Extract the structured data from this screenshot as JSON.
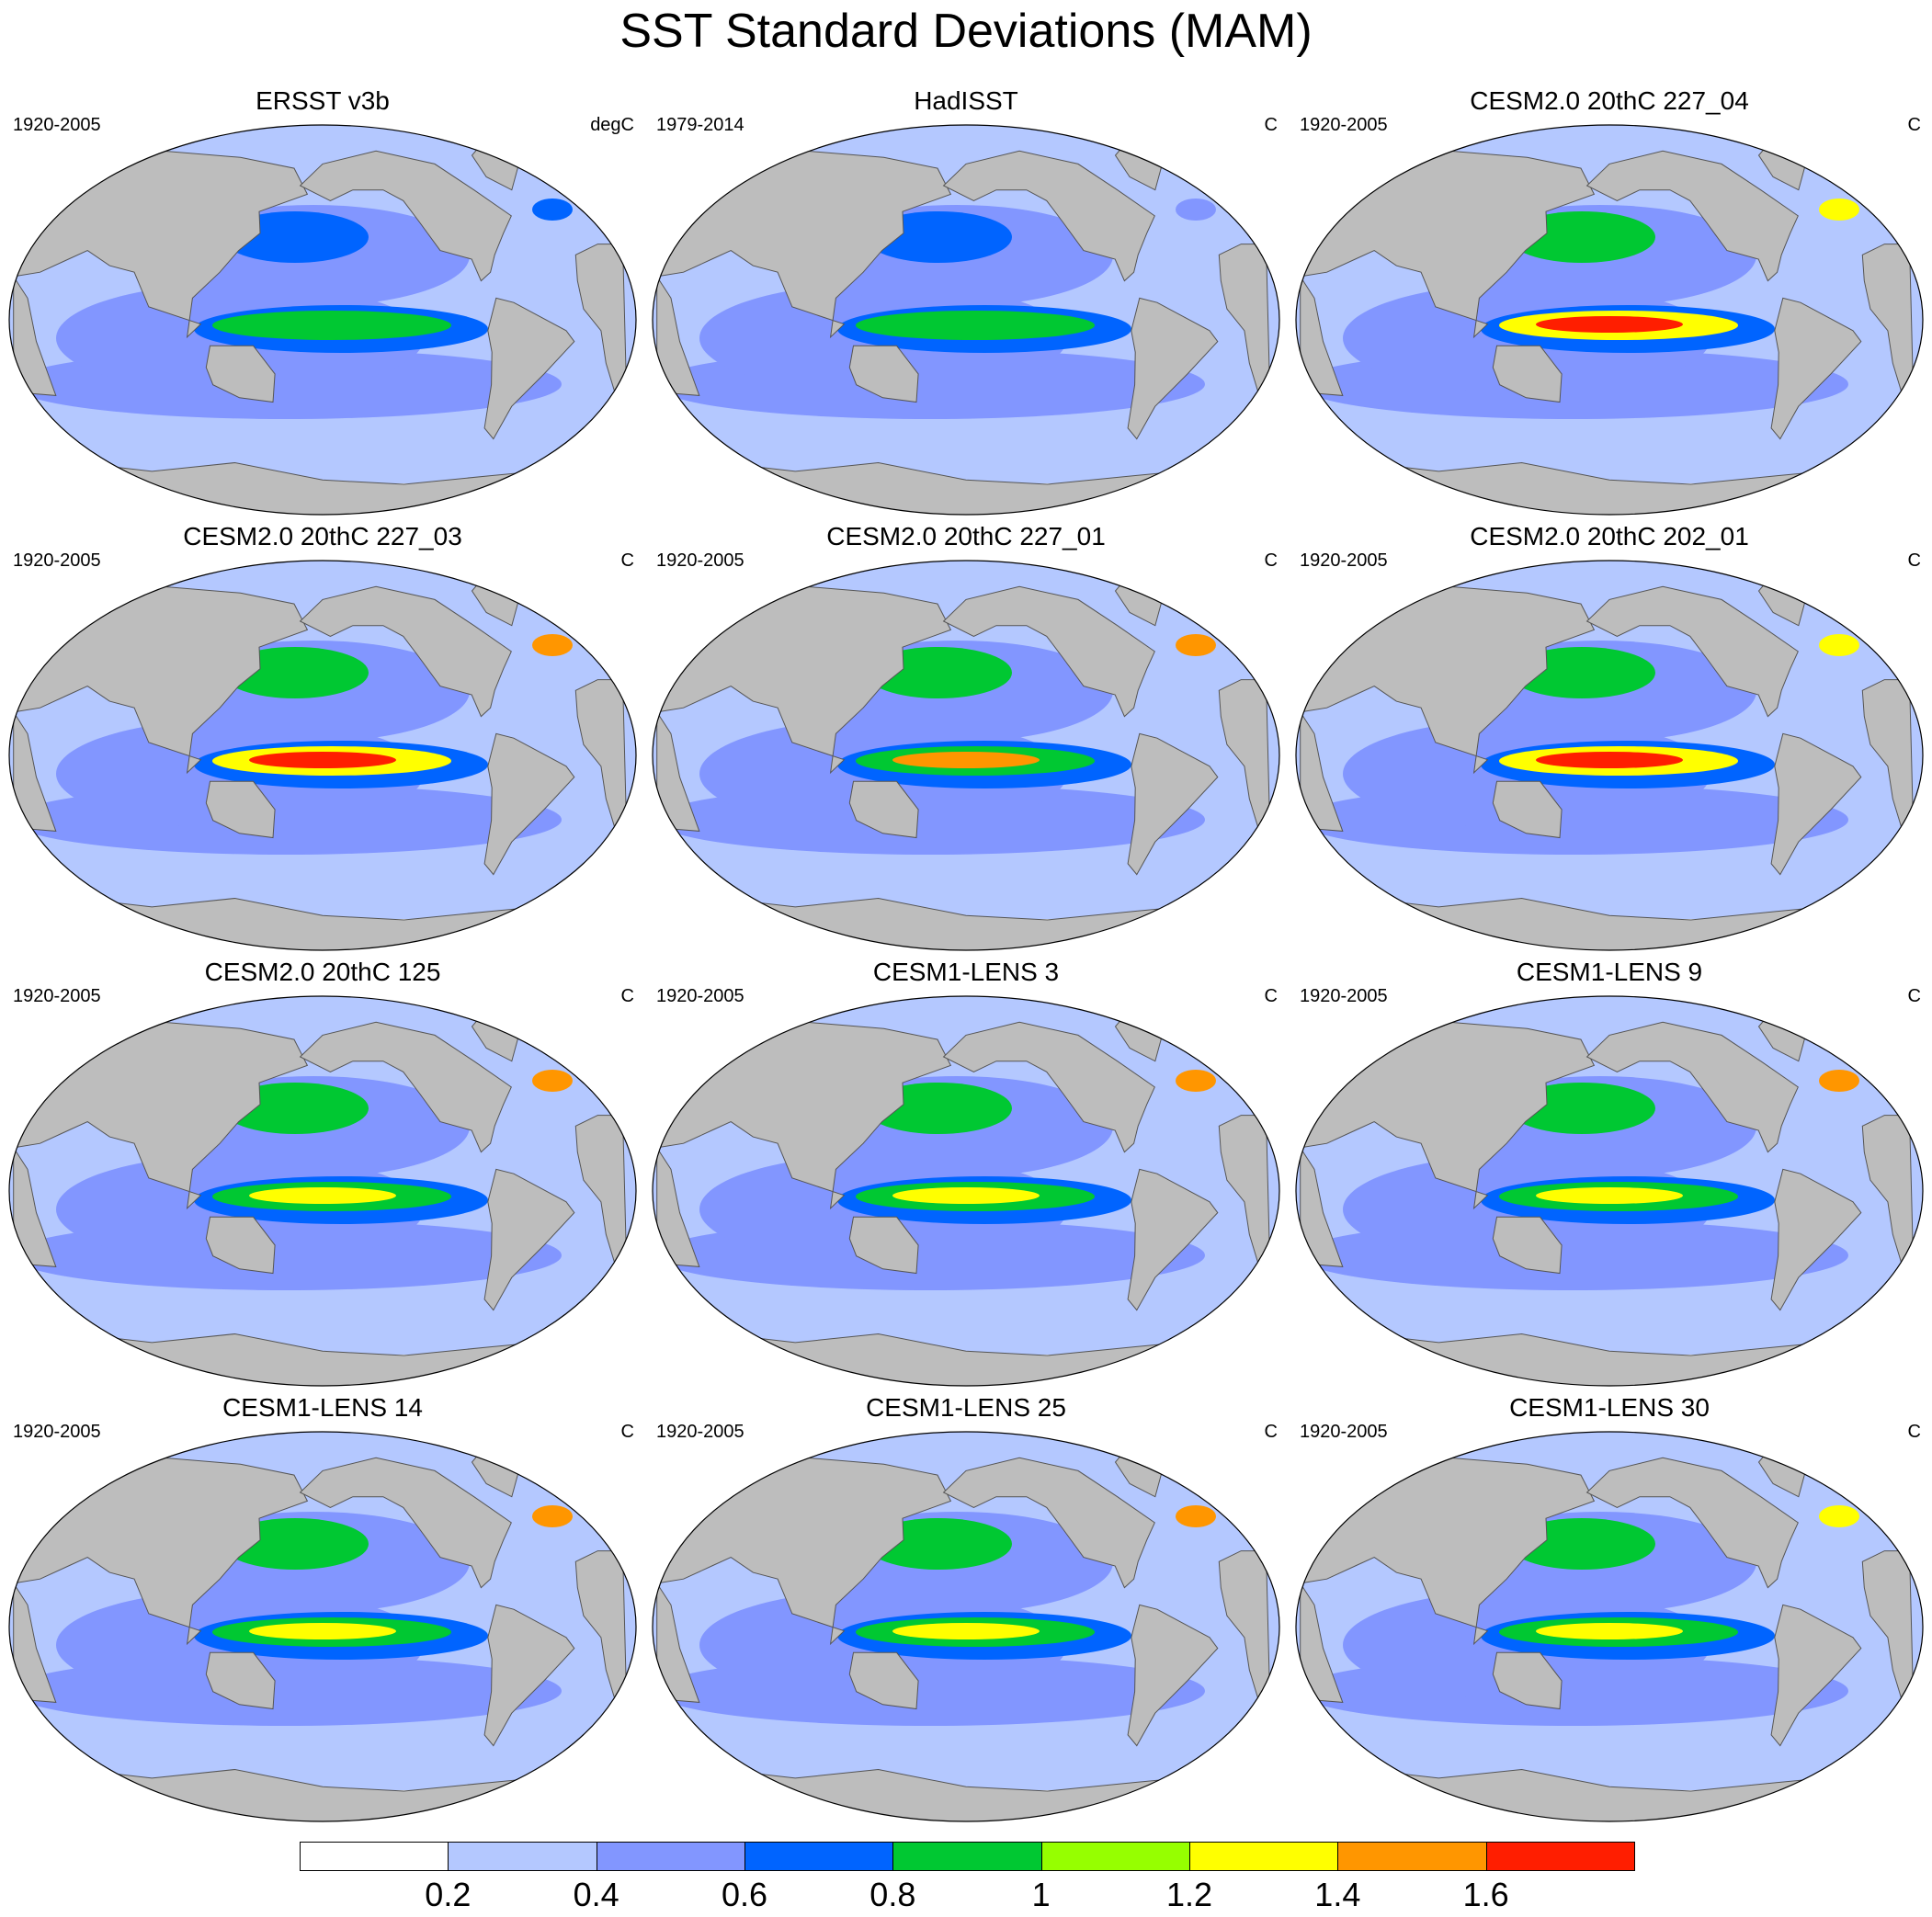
{
  "title": "SST Standard Deviations (MAM)",
  "colors": {
    "land": "#bdbdbd",
    "ocean_bins": [
      "#ffffff",
      "#b4c8ff",
      "#8296ff",
      "#0064ff",
      "#00c832",
      "#96ff00",
      "#ffff00",
      "#ff9600",
      "#ff1e00"
    ]
  },
  "colorbar": {
    "labels": [
      "0.2",
      "0.4",
      "0.6",
      "0.8",
      "1",
      "1.2",
      "1.4",
      "1.6"
    ],
    "levels": [
      0.2,
      0.4,
      0.6,
      0.8,
      1.0,
      1.2,
      1.4,
      1.6
    ]
  },
  "panels": [
    {
      "title": "ERSST v3b",
      "years": "1920-2005",
      "units": "degC",
      "enso": 0.9,
      "npac": 0.6,
      "kuro": 0.8
    },
    {
      "title": "HadISST",
      "years": "1979-2014",
      "units": "C",
      "enso": 0.9,
      "npac": 0.6,
      "kuro": 0.7
    },
    {
      "title": "CESM2.0 20thC 227_04",
      "years": "1920-2005",
      "units": "C",
      "enso": 1.6,
      "npac": 0.8,
      "kuro": 1.4
    },
    {
      "title": "CESM2.0 20thC 227_03",
      "years": "1920-2005",
      "units": "C",
      "enso": 1.6,
      "npac": 0.9,
      "kuro": 1.6
    },
    {
      "title": "CESM2.0 20thC 227_01",
      "years": "1920-2005",
      "units": "C",
      "enso": 1.4,
      "npac": 0.9,
      "kuro": 1.6
    },
    {
      "title": "CESM2.0 20thC 202_01",
      "years": "1920-2005",
      "units": "C",
      "enso": 1.6,
      "npac": 0.9,
      "kuro": 1.4
    },
    {
      "title": "CESM2.0 20thC 125",
      "years": "1920-2005",
      "units": "C",
      "enso": 1.2,
      "npac": 0.9,
      "kuro": 1.6
    },
    {
      "title": "CESM1-LENS 3",
      "years": "1920-2005",
      "units": "C",
      "enso": 1.2,
      "npac": 0.9,
      "kuro": 1.6
    },
    {
      "title": "CESM1-LENS 9",
      "years": "1920-2005",
      "units": "C",
      "enso": 1.2,
      "npac": 0.9,
      "kuro": 1.6
    },
    {
      "title": "CESM1-LENS 14",
      "years": "1920-2005",
      "units": "C",
      "enso": 1.2,
      "npac": 0.9,
      "kuro": 1.6
    },
    {
      "title": "CESM1-LENS 25",
      "years": "1920-2005",
      "units": "C",
      "enso": 1.2,
      "npac": 0.9,
      "kuro": 1.6
    },
    {
      "title": "CESM1-LENS 30",
      "years": "1920-2005",
      "units": "C",
      "enso": 1.2,
      "npac": 0.9,
      "kuro": 1.4
    }
  ]
}
